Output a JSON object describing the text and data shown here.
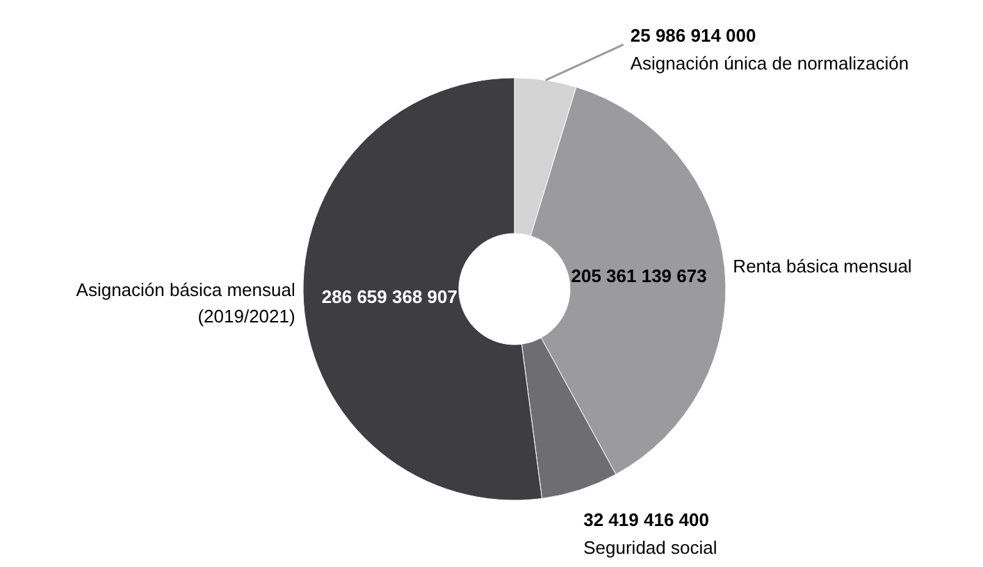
{
  "chart_data": {
    "type": "donut",
    "categories": [
      "Asignación única de normalización",
      "Renta básica mensual",
      "Seguridad social",
      "Asignación básica mensual (2019/2021)"
    ],
    "values": [
      25986914000,
      205361139673,
      32419416400,
      286659368907
    ],
    "colors": [
      "#d4d4d4",
      "#9b9b9d",
      "#6e6e70",
      "#3e3e40"
    ],
    "value_labels": [
      "25 986 914 000",
      "205 361 139 673",
      "32 419 416 400",
      "286 659 368 907"
    ]
  }
}
